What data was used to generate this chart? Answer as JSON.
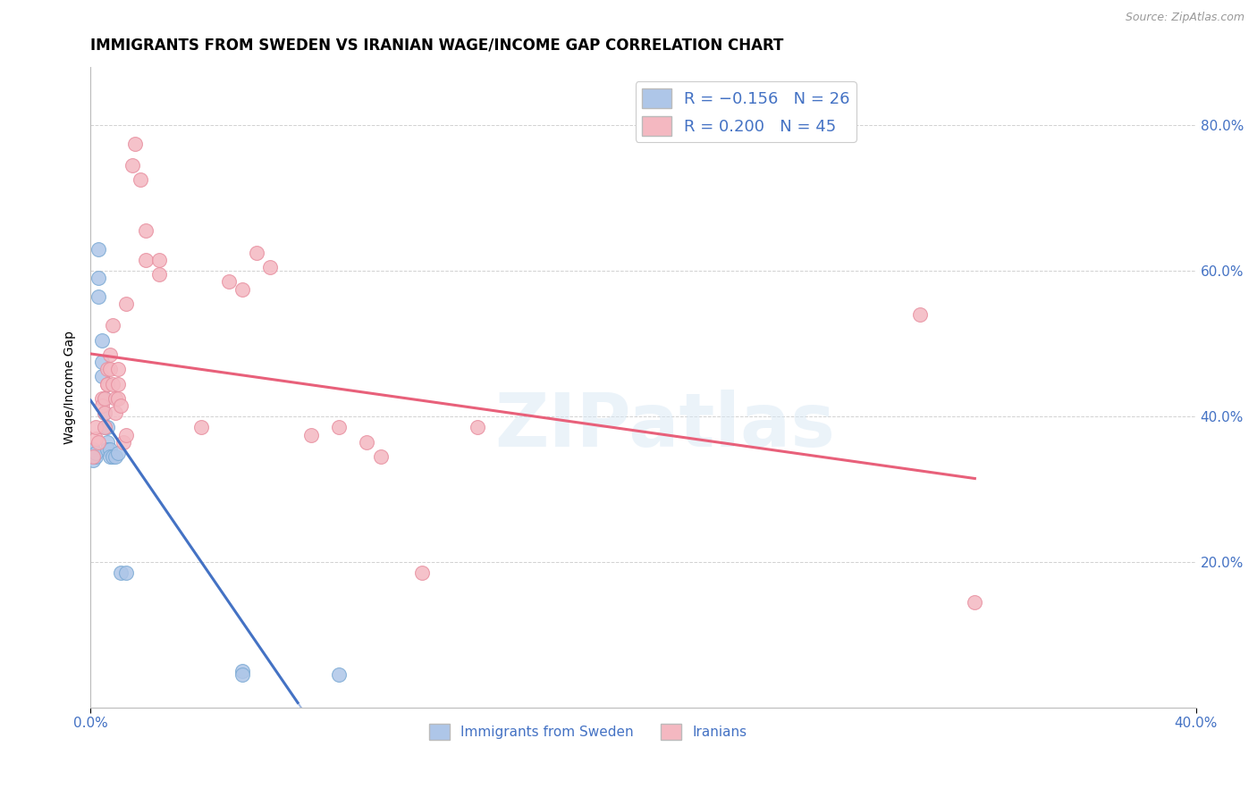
{
  "title": "IMMIGRANTS FROM SWEDEN VS IRANIAN WAGE/INCOME GAP CORRELATION CHART",
  "source": "Source: ZipAtlas.com",
  "ylabel": "Wage/Income Gap",
  "watermark": "ZIPatlas",
  "legend_sweden": "Immigrants from Sweden",
  "legend_iran": "Iranians",
  "legend_r_sweden": "R = -0.156",
  "legend_n_sweden": "N = 26",
  "legend_r_iran": "R = 0.200",
  "legend_n_iran": "N = 45",
  "yticks": [
    0.2,
    0.4,
    0.6,
    0.8
  ],
  "ytick_labels": [
    "20.0%",
    "40.0%",
    "60.0%",
    "80.0%"
  ],
  "xtick_labels": [
    "0.0%",
    "40.0%"
  ],
  "xlim": [
    0.0,
    0.4
  ],
  "ylim": [
    0.0,
    0.88
  ],
  "sweden_x": [
    0.001,
    0.001,
    0.002,
    0.002,
    0.003,
    0.003,
    0.003,
    0.004,
    0.004,
    0.004,
    0.005,
    0.005,
    0.005,
    0.006,
    0.006,
    0.006,
    0.007,
    0.007,
    0.008,
    0.009,
    0.01,
    0.011,
    0.013,
    0.055,
    0.055,
    0.09
  ],
  "sweden_y": [
    0.355,
    0.34,
    0.345,
    0.35,
    0.565,
    0.59,
    0.63,
    0.505,
    0.475,
    0.455,
    0.425,
    0.405,
    0.385,
    0.385,
    0.365,
    0.355,
    0.355,
    0.345,
    0.345,
    0.345,
    0.35,
    0.185,
    0.185,
    0.05,
    0.045,
    0.045
  ],
  "iran_x": [
    0.001,
    0.002,
    0.002,
    0.003,
    0.004,
    0.004,
    0.005,
    0.005,
    0.005,
    0.006,
    0.006,
    0.006,
    0.007,
    0.007,
    0.008,
    0.008,
    0.009,
    0.009,
    0.01,
    0.01,
    0.01,
    0.011,
    0.012,
    0.013,
    0.013,
    0.015,
    0.016,
    0.018,
    0.02,
    0.02,
    0.025,
    0.025,
    0.04,
    0.05,
    0.055,
    0.06,
    0.065,
    0.08,
    0.09,
    0.1,
    0.105,
    0.12,
    0.14,
    0.3,
    0.32
  ],
  "iran_y": [
    0.345,
    0.37,
    0.385,
    0.365,
    0.425,
    0.415,
    0.405,
    0.385,
    0.425,
    0.445,
    0.465,
    0.445,
    0.465,
    0.485,
    0.525,
    0.445,
    0.405,
    0.425,
    0.445,
    0.465,
    0.425,
    0.415,
    0.365,
    0.375,
    0.555,
    0.745,
    0.775,
    0.725,
    0.655,
    0.615,
    0.615,
    0.595,
    0.385,
    0.585,
    0.575,
    0.625,
    0.605,
    0.375,
    0.385,
    0.365,
    0.345,
    0.185,
    0.385,
    0.54,
    0.145
  ],
  "sweden_color": "#aec6e8",
  "sweden_edge_color": "#7baad4",
  "iran_color": "#f4b8c1",
  "iran_edge_color": "#e890a0",
  "sweden_line_color": "#4472c4",
  "iran_line_color": "#e8607a",
  "marker_size": 130,
  "title_fontsize": 12,
  "axis_label_fontsize": 10,
  "tick_label_color": "#4472c4",
  "grid_color": "#cccccc",
  "background_color": "#ffffff"
}
